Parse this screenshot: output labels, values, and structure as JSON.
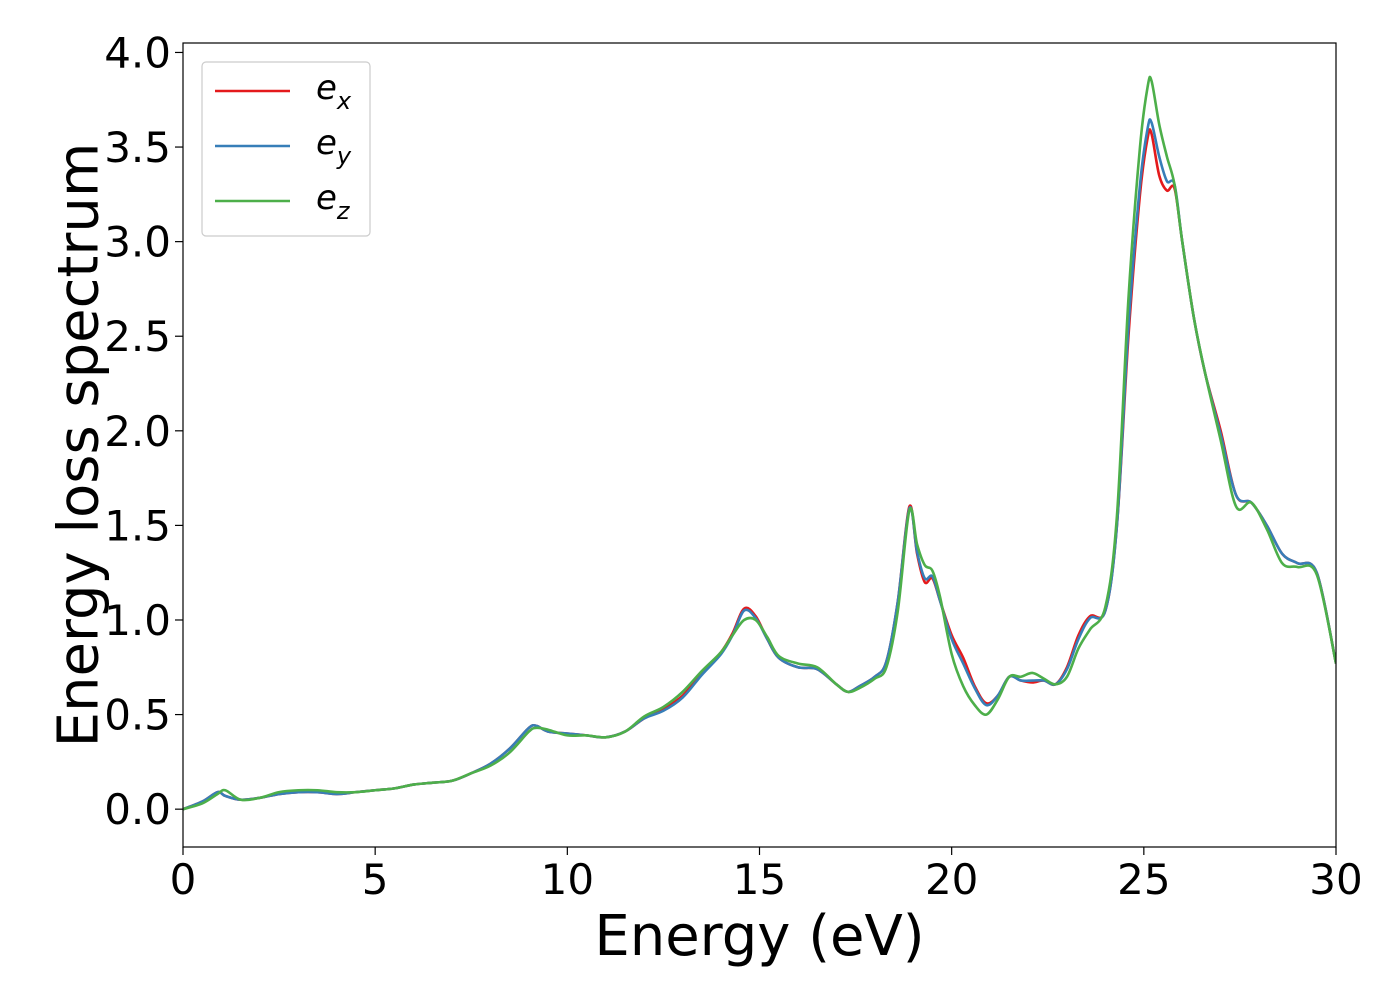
{
  "chart_data": {
    "type": "line",
    "title": "",
    "xlabel": "Energy (eV)",
    "ylabel": "Energy loss spectrum",
    "xlim": [
      0,
      30
    ],
    "ylim": [
      -0.2,
      4.05
    ],
    "xticks": [
      0,
      5,
      10,
      15,
      20,
      25,
      30
    ],
    "xtick_labels": [
      "0",
      "5",
      "10",
      "15",
      "20",
      "25",
      "30"
    ],
    "yticks": [
      0.0,
      0.5,
      1.0,
      1.5,
      2.0,
      2.5,
      3.0,
      3.5,
      4.0
    ],
    "ytick_labels": [
      "0.0",
      "0.5",
      "1.0",
      "1.5",
      "2.0",
      "2.5",
      "3.0",
      "3.5",
      "4.0"
    ],
    "grid": false,
    "legend_position": "top-left",
    "series": [
      {
        "name": "e_x",
        "legend_base": "e",
        "legend_sub": "x",
        "color": "#e41a1c",
        "x": [
          0,
          0.5,
          0.9,
          1.1,
          1.5,
          2.0,
          2.5,
          3.0,
          3.5,
          4.0,
          4.5,
          5.0,
          5.5,
          6.0,
          6.5,
          7.0,
          7.5,
          8.0,
          8.5,
          9.0,
          9.2,
          9.5,
          10.0,
          10.5,
          11.0,
          11.5,
          12.0,
          12.5,
          13.0,
          13.5,
          14.0,
          14.3,
          14.6,
          14.9,
          15.2,
          15.5,
          16.0,
          16.5,
          17.0,
          17.3,
          17.6,
          18.0,
          18.3,
          18.6,
          18.9,
          19.1,
          19.3,
          19.5,
          19.7,
          20.0,
          20.3,
          20.6,
          20.9,
          21.2,
          21.5,
          21.8,
          22.1,
          22.4,
          22.7,
          23.0,
          23.3,
          23.6,
          24.0,
          24.3,
          24.6,
          24.9,
          25.1,
          25.2,
          25.4,
          25.6,
          25.8,
          26.0,
          26.3,
          26.6,
          27.0,
          27.4,
          27.8,
          28.2,
          28.6,
          29.0,
          29.5,
          30.0
        ],
        "y": [
          0.0,
          0.04,
          0.09,
          0.07,
          0.05,
          0.06,
          0.08,
          0.09,
          0.09,
          0.08,
          0.09,
          0.1,
          0.11,
          0.13,
          0.14,
          0.15,
          0.19,
          0.24,
          0.32,
          0.43,
          0.44,
          0.41,
          0.4,
          0.39,
          0.38,
          0.41,
          0.48,
          0.53,
          0.6,
          0.72,
          0.83,
          0.93,
          1.06,
          1.02,
          0.9,
          0.8,
          0.75,
          0.74,
          0.66,
          0.62,
          0.65,
          0.7,
          0.78,
          1.1,
          1.6,
          1.35,
          1.2,
          1.22,
          1.1,
          0.92,
          0.8,
          0.65,
          0.56,
          0.6,
          0.7,
          0.68,
          0.67,
          0.68,
          0.66,
          0.75,
          0.92,
          1.02,
          1.05,
          1.5,
          2.5,
          3.25,
          3.55,
          3.57,
          3.35,
          3.27,
          3.28,
          3.0,
          2.6,
          2.3,
          2.0,
          1.66,
          1.62,
          1.5,
          1.35,
          1.3,
          1.25,
          0.77
        ]
      },
      {
        "name": "e_y",
        "legend_base": "e",
        "legend_sub": "y",
        "color": "#377eb8",
        "x": [
          0,
          0.5,
          0.9,
          1.1,
          1.5,
          2.0,
          2.5,
          3.0,
          3.5,
          4.0,
          4.5,
          5.0,
          5.5,
          6.0,
          6.5,
          7.0,
          7.5,
          8.0,
          8.5,
          9.0,
          9.2,
          9.5,
          10.0,
          10.5,
          11.0,
          11.5,
          12.0,
          12.5,
          13.0,
          13.5,
          14.0,
          14.3,
          14.6,
          14.9,
          15.2,
          15.5,
          16.0,
          16.5,
          17.0,
          17.3,
          17.6,
          18.0,
          18.3,
          18.6,
          18.9,
          19.1,
          19.3,
          19.5,
          19.7,
          20.0,
          20.3,
          20.6,
          20.9,
          21.2,
          21.5,
          21.8,
          22.1,
          22.4,
          22.7,
          23.0,
          23.3,
          23.6,
          24.0,
          24.3,
          24.6,
          24.9,
          25.1,
          25.2,
          25.4,
          25.6,
          25.8,
          26.0,
          26.3,
          26.6,
          27.0,
          27.4,
          27.8,
          28.2,
          28.6,
          29.0,
          29.5,
          30.0
        ],
        "y": [
          0.0,
          0.04,
          0.09,
          0.07,
          0.05,
          0.06,
          0.08,
          0.09,
          0.09,
          0.08,
          0.09,
          0.1,
          0.11,
          0.13,
          0.14,
          0.15,
          0.19,
          0.24,
          0.32,
          0.43,
          0.44,
          0.41,
          0.4,
          0.39,
          0.38,
          0.41,
          0.48,
          0.52,
          0.59,
          0.71,
          0.82,
          0.92,
          1.05,
          1.01,
          0.9,
          0.8,
          0.75,
          0.74,
          0.66,
          0.62,
          0.65,
          0.7,
          0.78,
          1.1,
          1.59,
          1.36,
          1.22,
          1.23,
          1.1,
          0.9,
          0.77,
          0.64,
          0.55,
          0.6,
          0.7,
          0.68,
          0.68,
          0.68,
          0.66,
          0.74,
          0.9,
          1.01,
          1.05,
          1.5,
          2.55,
          3.3,
          3.6,
          3.63,
          3.45,
          3.32,
          3.3,
          3.0,
          2.6,
          2.3,
          1.98,
          1.66,
          1.62,
          1.5,
          1.35,
          1.3,
          1.25,
          0.77
        ]
      },
      {
        "name": "e_z",
        "legend_base": "e",
        "legend_sub": "z",
        "color": "#4daf4a",
        "x": [
          0,
          0.5,
          0.9,
          1.1,
          1.5,
          2.0,
          2.5,
          3.0,
          3.5,
          4.0,
          4.5,
          5.0,
          5.5,
          6.0,
          6.5,
          7.0,
          7.5,
          8.0,
          8.5,
          9.0,
          9.2,
          9.5,
          10.0,
          10.5,
          11.0,
          11.5,
          12.0,
          12.5,
          13.0,
          13.5,
          14.0,
          14.3,
          14.6,
          14.9,
          15.2,
          15.5,
          16.0,
          16.5,
          17.0,
          17.3,
          17.6,
          18.0,
          18.3,
          18.6,
          18.9,
          19.1,
          19.3,
          19.5,
          19.7,
          20.0,
          20.3,
          20.6,
          20.9,
          21.2,
          21.5,
          21.8,
          22.1,
          22.4,
          22.7,
          23.0,
          23.3,
          23.6,
          24.0,
          24.3,
          24.6,
          24.9,
          25.1,
          25.2,
          25.4,
          25.6,
          25.8,
          26.0,
          26.3,
          26.6,
          27.0,
          27.4,
          27.8,
          28.2,
          28.6,
          29.0,
          29.5,
          30.0
        ],
        "y": [
          0.0,
          0.03,
          0.08,
          0.1,
          0.05,
          0.06,
          0.09,
          0.1,
          0.1,
          0.09,
          0.09,
          0.1,
          0.11,
          0.13,
          0.14,
          0.15,
          0.19,
          0.23,
          0.3,
          0.41,
          0.43,
          0.42,
          0.39,
          0.39,
          0.38,
          0.41,
          0.49,
          0.54,
          0.62,
          0.73,
          0.83,
          0.92,
          1.0,
          1.0,
          0.91,
          0.81,
          0.77,
          0.75,
          0.66,
          0.62,
          0.64,
          0.69,
          0.75,
          1.05,
          1.58,
          1.4,
          1.29,
          1.26,
          1.12,
          0.82,
          0.65,
          0.55,
          0.5,
          0.58,
          0.7,
          0.7,
          0.72,
          0.69,
          0.66,
          0.7,
          0.85,
          0.95,
          1.07,
          1.55,
          2.7,
          3.5,
          3.82,
          3.85,
          3.62,
          3.45,
          3.3,
          3.0,
          2.6,
          2.3,
          1.95,
          1.6,
          1.62,
          1.48,
          1.3,
          1.28,
          1.24,
          0.77
        ]
      }
    ]
  }
}
